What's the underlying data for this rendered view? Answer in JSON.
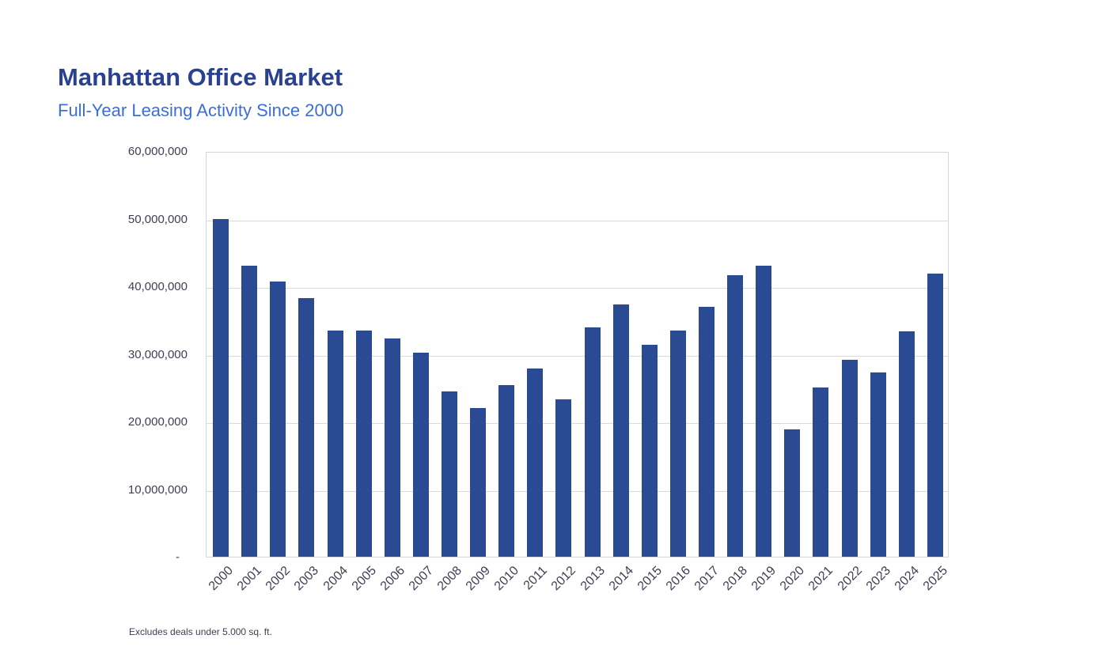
{
  "header": {
    "title": "Manhattan Office Market",
    "subtitle": "Full-Year Leasing Activity Since 2000"
  },
  "footnote": "Excludes deals under 5.000 sq. ft.",
  "colors": {
    "title": "#2a4190",
    "subtitle": "#3b6ed9",
    "bar": "#2b4a94",
    "axis_text": "#3d3f54",
    "gridline": "#dadada",
    "plot_border": "#d6d6d6",
    "background": "#ffffff"
  },
  "chart_data": {
    "type": "bar",
    "title": "Manhattan Office Market",
    "subtitle": "Full-Year Leasing Activity Since 2000",
    "xlabel": "",
    "ylabel": "",
    "ylim": [
      0,
      60000000
    ],
    "grid": "horizontal",
    "legend": "none",
    "x_label_rotation": -45,
    "bar_color": "#2b4a94",
    "categories": [
      "2000",
      "2001",
      "2002",
      "2003",
      "2004",
      "2005",
      "2006",
      "2007",
      "2008",
      "2009",
      "2010",
      "2011",
      "2012",
      "2013",
      "2014",
      "2015",
      "2016",
      "2017",
      "2018",
      "2019",
      "2020",
      "2021",
      "2022",
      "2023",
      "2024",
      "2025"
    ],
    "values": [
      50000000,
      43100000,
      40700000,
      38200000,
      33400000,
      33500000,
      32300000,
      30200000,
      24500000,
      22000000,
      25400000,
      27900000,
      23300000,
      33900000,
      37300000,
      31300000,
      33400000,
      37000000,
      41700000,
      43000000,
      18800000,
      25000000,
      29100000,
      27200000,
      33300000,
      41900000
    ],
    "yticks": [
      {
        "value": 0,
        "label": "-"
      },
      {
        "value": 10000000,
        "label": "10,000,000"
      },
      {
        "value": 20000000,
        "label": "20,000,000"
      },
      {
        "value": 30000000,
        "label": "30,000,000"
      },
      {
        "value": 40000000,
        "label": "40,000,000"
      },
      {
        "value": 50000000,
        "label": "50,000,000"
      },
      {
        "value": 60000000,
        "label": "60,000,000"
      }
    ],
    "footnote": "Excludes deals under 5.000 sq. ft."
  }
}
